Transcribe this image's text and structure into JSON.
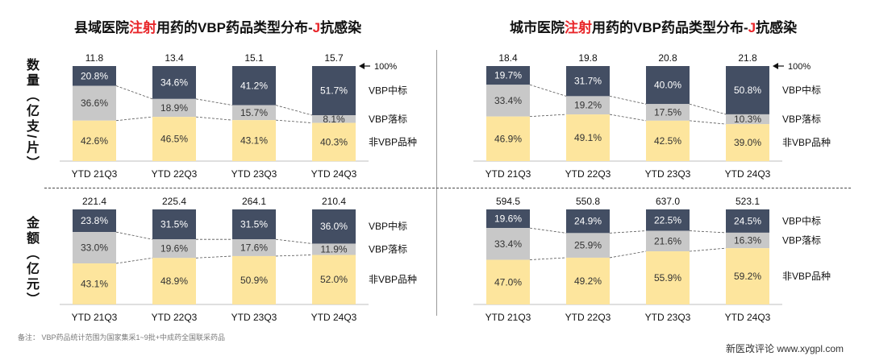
{
  "titles": [
    {
      "pre": "县域医院",
      "hl": "注射",
      "post": "用药的VBP药品类型分布-",
      "hl2": "J",
      "post2": "抗感染"
    },
    {
      "pre": "城市医院",
      "hl": "注射",
      "post": "用药的VBP药品类型分布-",
      "hl2": "J",
      "post2": "抗感染"
    }
  ],
  "row_labels": {
    "quantity": "数量（亿支/片）",
    "amount": "金额（亿元）"
  },
  "legend": {
    "hundred": "100%",
    "vbp_win": "VBP中标",
    "vbp_lose": "VBP落标",
    "non_vbp": "非VBP品种"
  },
  "note": "备注：   VBP药品统计范围为国家集采1~9批+中成药全国联采药品",
  "footer": "新医改评论 www.xygpl.com",
  "colors": {
    "vbp_win": "#434e63",
    "vbp_lose": "#c8c8c8",
    "non_vbp": "#fde59d",
    "accent": "#e8262a"
  },
  "chart_data": [
    {
      "type": "bar",
      "stacked": "percent",
      "categories": [
        "YTD 21Q3",
        "YTD 22Q3",
        "YTD 23Q3",
        "YTD 24Q3"
      ],
      "totals": [
        "11.8",
        "13.4",
        "15.1",
        "15.7"
      ],
      "series": [
        {
          "name": "VBP中标",
          "values": [
            20.8,
            34.6,
            41.2,
            51.7
          ]
        },
        {
          "name": "VBP落标",
          "values": [
            36.6,
            18.9,
            15.7,
            8.1
          ]
        },
        {
          "name": "非VBP品种",
          "values": [
            42.6,
            46.5,
            43.1,
            40.3
          ]
        }
      ]
    },
    {
      "type": "bar",
      "stacked": "percent",
      "categories": [
        "YTD 21Q3",
        "YTD 22Q3",
        "YTD 23Q3",
        "YTD 24Q3"
      ],
      "totals": [
        "18.4",
        "19.8",
        "20.8",
        "21.8"
      ],
      "series": [
        {
          "name": "VBP中标",
          "values": [
            19.7,
            31.7,
            40.0,
            50.8
          ]
        },
        {
          "name": "VBP落标",
          "values": [
            33.4,
            19.2,
            17.5,
            10.3
          ]
        },
        {
          "name": "非VBP品种",
          "values": [
            46.9,
            49.1,
            42.5,
            39.0
          ]
        }
      ]
    },
    {
      "type": "bar",
      "stacked": "percent",
      "categories": [
        "YTD 21Q3",
        "YTD 22Q3",
        "YTD 23Q3",
        "YTD 24Q3"
      ],
      "totals": [
        "221.4",
        "225.4",
        "264.1",
        "210.4"
      ],
      "series": [
        {
          "name": "VBP中标",
          "values": [
            23.8,
            31.5,
            31.5,
            36.0
          ]
        },
        {
          "name": "VBP落标",
          "values": [
            33.0,
            19.6,
            17.6,
            11.9
          ]
        },
        {
          "name": "非VBP品种",
          "values": [
            43.1,
            48.9,
            50.9,
            52.0
          ]
        }
      ]
    },
    {
      "type": "bar",
      "stacked": "percent",
      "categories": [
        "YTD 21Q3",
        "YTD 22Q3",
        "YTD 23Q3",
        "YTD 24Q3"
      ],
      "totals": [
        "594.5",
        "550.8",
        "637.0",
        "523.1"
      ],
      "series": [
        {
          "name": "VBP中标",
          "values": [
            19.6,
            24.9,
            22.5,
            24.5
          ]
        },
        {
          "name": "VBP落标",
          "values": [
            33.4,
            25.9,
            21.6,
            16.3
          ]
        },
        {
          "name": "非VBP品种",
          "values": [
            47.0,
            49.2,
            55.9,
            59.2
          ]
        }
      ]
    }
  ]
}
